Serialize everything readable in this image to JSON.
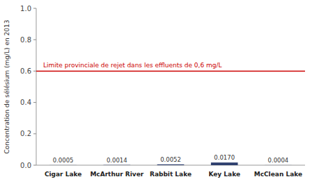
{
  "chart_data": {
    "type": "bar",
    "categories": [
      "Cigar Lake",
      "McArthur River",
      "Rabbit Lake",
      "Key Lake",
      "McClean Lake"
    ],
    "values": [
      0.0005,
      0.0014,
      0.0052,
      0.017,
      0.0004
    ],
    "value_labels": [
      "0.0005",
      "0.0014",
      "0.0052",
      "0.0170",
      "0.0004"
    ],
    "data_labels": true,
    "color": "#2e3f6e",
    "y_label": "Concentration de sélésium (mg/L) en 2013",
    "ylim": [
      0,
      1.0
    ],
    "yticks": [
      {
        "value": 0.0,
        "label": "0.0"
      },
      0.2,
      0.4,
      0.6,
      0.8,
      {
        "value": 1.0,
        "label": "1.0"
      }
    ],
    "grid": false,
    "annotations": [
      {
        "type": "hline",
        "y": 0.6,
        "label": "Limite provinciale de rejet dans les effluents de 0,6 mg/L",
        "color": "#cc0000"
      }
    ]
  }
}
